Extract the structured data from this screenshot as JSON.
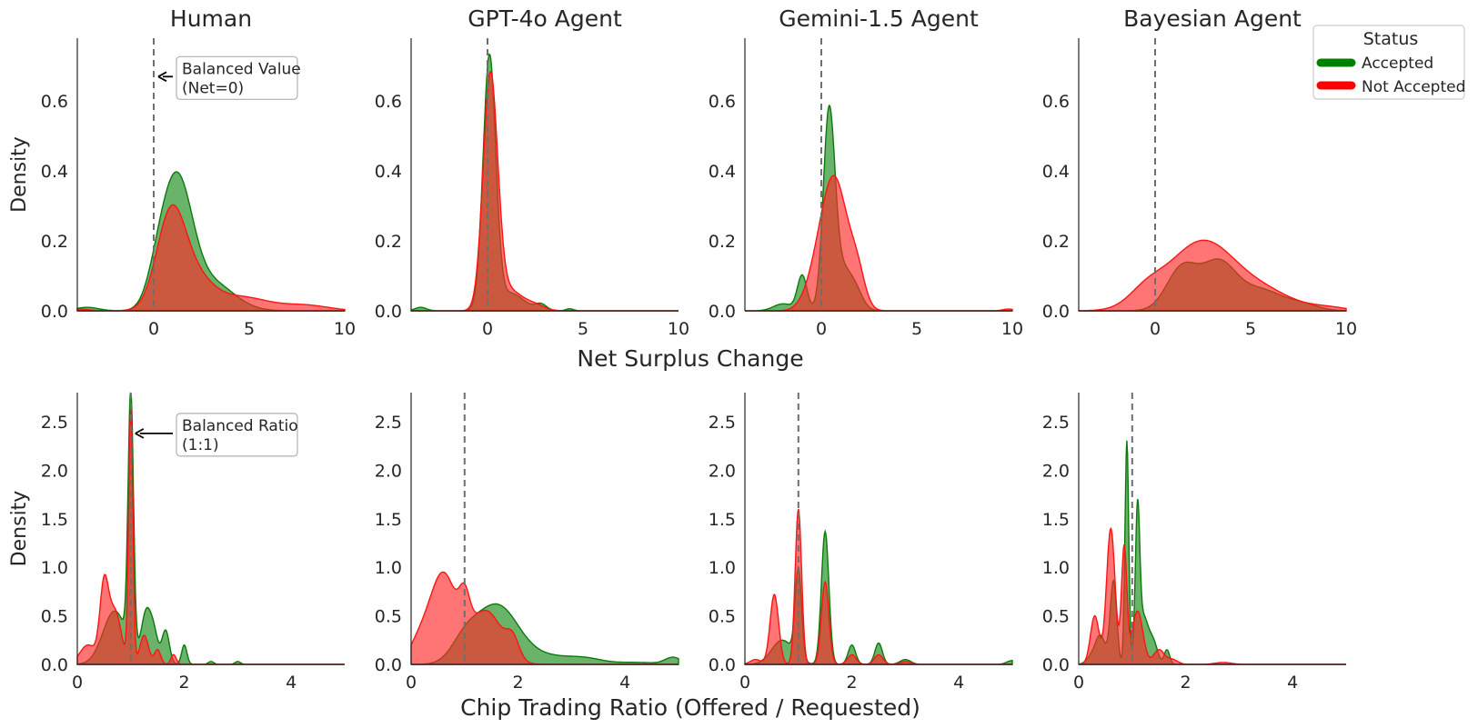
{
  "figure": {
    "row1_xlabel": "Net Surplus Change",
    "row2_xlabel": "Chip Trading Ratio (Offered / Requested)",
    "ylabel": "Density"
  },
  "legend": {
    "title": "Status",
    "entries": [
      {
        "label": "Accepted",
        "color": "#008000"
      },
      {
        "label": "Not Accepted",
        "color": "#ff0000"
      }
    ]
  },
  "annotations": {
    "surplus": {
      "line1": "Balanced Value",
      "line2": "(Net=0)",
      "x": 0,
      "y": 0.67
    },
    "ratio": {
      "line1": "Balanced Ratio",
      "line2": "(1:1)",
      "x": 1.0,
      "y": 2.38
    }
  },
  "chart_data": [
    {
      "type": "area",
      "row": 0,
      "col": 0,
      "title": "Human",
      "xlabel": "",
      "ylabel": "Density",
      "xlim": [
        -4,
        10
      ],
      "ylim": [
        0,
        0.78
      ],
      "xticks": [
        0,
        5,
        10
      ],
      "yticks": [
        0.0,
        0.2,
        0.4,
        0.6
      ],
      "reference_x": 0,
      "series": [
        {
          "name": "Accepted",
          "components": [
            [
              0.2,
              0.55,
              0.06
            ],
            [
              1.2,
              0.8,
              0.36
            ],
            [
              3,
              1.2,
              0.08
            ],
            [
              -3.5,
              0.6,
              0.01
            ]
          ]
        },
        {
          "name": "Not Accepted",
          "components": [
            [
              0.9,
              0.75,
              0.27
            ],
            [
              2.2,
              0.9,
              0.08
            ],
            [
              4.5,
              1.5,
              0.04
            ],
            [
              8,
              1.2,
              0.015
            ],
            [
              -3.8,
              0.4,
              0.005
            ]
          ]
        }
      ]
    },
    {
      "type": "area",
      "row": 0,
      "col": 1,
      "title": "GPT-4o Agent",
      "xlabel": "",
      "ylabel": "",
      "xlim": [
        -4,
        10
      ],
      "ylim": [
        0,
        0.78
      ],
      "xticks": [
        0,
        5,
        10
      ],
      "yticks": [
        0.0,
        0.2,
        0.4,
        0.6
      ],
      "reference_x": 0,
      "series": [
        {
          "name": "Accepted",
          "components": [
            [
              0.1,
              0.33,
              0.72
            ],
            [
              1.2,
              0.7,
              0.05
            ],
            [
              2.8,
              0.3,
              0.018
            ],
            [
              -3.5,
              0.3,
              0.01
            ],
            [
              4.3,
              0.2,
              0.006
            ]
          ]
        },
        {
          "name": "Not Accepted",
          "components": [
            [
              0.15,
              0.38,
              0.66
            ],
            [
              1.1,
              0.7,
              0.06
            ],
            [
              2.5,
              0.5,
              0.015
            ]
          ]
        }
      ]
    },
    {
      "type": "area",
      "row": 0,
      "col": 2,
      "title": "Gemini-1.5 Agent",
      "xlabel": "",
      "ylabel": "",
      "xlim": [
        -4,
        10
      ],
      "ylim": [
        0,
        0.78
      ],
      "xticks": [
        0,
        5,
        10
      ],
      "yticks": [
        0.0,
        0.2,
        0.4,
        0.6
      ],
      "reference_x": 0,
      "series": [
        {
          "name": "Accepted",
          "components": [
            [
              0.4,
              0.3,
              0.52
            ],
            [
              1.0,
              0.55,
              0.12
            ],
            [
              -1.0,
              0.25,
              0.1
            ],
            [
              -2.0,
              0.5,
              0.02
            ],
            [
              1.8,
              0.4,
              0.04
            ]
          ]
        },
        {
          "name": "Not Accepted",
          "components": [
            [
              0.7,
              0.7,
              0.37
            ],
            [
              -0.3,
              0.6,
              0.06
            ],
            [
              1.9,
              0.4,
              0.08
            ],
            [
              9.8,
              0.3,
              0.005
            ]
          ]
        }
      ]
    },
    {
      "type": "area",
      "row": 0,
      "col": 3,
      "title": "Bayesian Agent",
      "xlabel": "",
      "ylabel": "",
      "xlim": [
        -4,
        10
      ],
      "ylim": [
        0,
        0.78
      ],
      "xticks": [
        0,
        5,
        10
      ],
      "yticks": [
        0.0,
        0.2,
        0.4,
        0.6
      ],
      "reference_x": 0,
      "series": [
        {
          "name": "Accepted",
          "components": [
            [
              1.4,
              0.8,
              0.12
            ],
            [
              3.3,
              0.9,
              0.13
            ],
            [
              5.5,
              1.2,
              0.06
            ],
            [
              7.8,
              0.8,
              0.015
            ]
          ]
        },
        {
          "name": "Not Accepted",
          "components": [
            [
              2.5,
              1.8,
              0.2
            ],
            [
              6,
              1.4,
              0.04
            ],
            [
              -0.5,
              0.9,
              0.04
            ],
            [
              9,
              1,
              0.01
            ]
          ]
        }
      ]
    },
    {
      "type": "area",
      "row": 1,
      "col": 0,
      "title": "",
      "xlabel": "",
      "ylabel": "Density",
      "xlim": [
        0,
        5
      ],
      "ylim": [
        0,
        2.8
      ],
      "xticks": [
        0,
        2,
        4
      ],
      "yticks": [
        0.0,
        0.5,
        1.0,
        1.5,
        2.0,
        2.5
      ],
      "reference_x": 1.0,
      "series": [
        {
          "name": "Accepted",
          "components": [
            [
              1.0,
              0.05,
              2.62
            ],
            [
              0.7,
              0.22,
              0.55
            ],
            [
              1.3,
              0.1,
              0.55
            ],
            [
              1.65,
              0.07,
              0.35
            ],
            [
              2.0,
              0.05,
              0.2
            ],
            [
              2.5,
              0.05,
              0.03
            ],
            [
              3.0,
              0.05,
              0.03
            ],
            [
              1.45,
              0.07,
              0.2
            ]
          ]
        },
        {
          "name": "Not Accepted",
          "components": [
            [
              1.0,
              0.04,
              2.6
            ],
            [
              0.5,
              0.08,
              0.75
            ],
            [
              0.7,
              0.12,
              0.55
            ],
            [
              0.2,
              0.15,
              0.2
            ],
            [
              1.25,
              0.08,
              0.3
            ],
            [
              1.5,
              0.06,
              0.15
            ],
            [
              1.8,
              0.05,
              0.1
            ]
          ]
        }
      ]
    },
    {
      "type": "area",
      "row": 1,
      "col": 1,
      "title": "",
      "xlabel": "",
      "ylabel": "",
      "xlim": [
        0,
        5
      ],
      "ylim": [
        0,
        2.8
      ],
      "xticks": [
        0,
        2,
        4
      ],
      "yticks": [
        0.0,
        0.5,
        1.0,
        1.5,
        2.0,
        2.5
      ],
      "reference_x": 1.0,
      "series": [
        {
          "name": "Accepted",
          "components": [
            [
              1.6,
              0.4,
              0.6
            ],
            [
              1.0,
              0.25,
              0.2
            ],
            [
              2.6,
              0.5,
              0.08
            ],
            [
              3.3,
              0.3,
              0.04
            ],
            [
              4.9,
              0.15,
              0.07
            ],
            [
              4.2,
              0.4,
              0.02
            ]
          ]
        },
        {
          "name": "Not Accepted",
          "components": [
            [
              0.6,
              0.25,
              0.92
            ],
            [
              1.0,
              0.1,
              0.35
            ],
            [
              1.4,
              0.3,
              0.55
            ],
            [
              1.9,
              0.12,
              0.2
            ],
            [
              0.15,
              0.2,
              0.2
            ]
          ]
        }
      ]
    },
    {
      "type": "area",
      "row": 1,
      "col": 2,
      "title": "",
      "xlabel": "",
      "ylabel": "",
      "xlim": [
        0,
        5
      ],
      "ylim": [
        0,
        2.8
      ],
      "xticks": [
        0,
        2,
        4
      ],
      "yticks": [
        0.0,
        0.5,
        1.0,
        1.5,
        2.0,
        2.5
      ],
      "reference_x": 1.0,
      "series": [
        {
          "name": "Accepted",
          "components": [
            [
              1.5,
              0.07,
              1.37
            ],
            [
              1.0,
              0.06,
              0.92
            ],
            [
              0.7,
              0.2,
              0.25
            ],
            [
              2.0,
              0.07,
              0.2
            ],
            [
              2.5,
              0.07,
              0.22
            ],
            [
              3.0,
              0.1,
              0.05
            ],
            [
              5.0,
              0.1,
              0.04
            ]
          ]
        },
        {
          "name": "Not Accepted",
          "components": [
            [
              1.0,
              0.06,
              1.6
            ],
            [
              0.55,
              0.08,
              0.72
            ],
            [
              1.5,
              0.07,
              0.85
            ],
            [
              0.2,
              0.1,
              0.05
            ],
            [
              2.0,
              0.08,
              0.1
            ],
            [
              2.5,
              0.08,
              0.1
            ],
            [
              3,
              0.1,
              0.03
            ]
          ]
        }
      ]
    },
    {
      "type": "area",
      "row": 1,
      "col": 3,
      "title": "",
      "xlabel": "",
      "ylabel": "",
      "xlim": [
        0,
        5
      ],
      "ylim": [
        0,
        2.8
      ],
      "xticks": [
        0,
        2,
        4
      ],
      "yticks": [
        0.0,
        0.5,
        1.0,
        1.5,
        2.0,
        2.5
      ],
      "reference_x": 1.0,
      "series": [
        {
          "name": "Accepted",
          "components": [
            [
              0.9,
              0.035,
              2.3
            ],
            [
              1.1,
              0.04,
              1.4
            ],
            [
              0.65,
              0.06,
              0.85
            ],
            [
              1.2,
              0.1,
              0.5
            ],
            [
              0.4,
              0.1,
              0.3
            ],
            [
              1.65,
              0.05,
              0.15
            ],
            [
              1.4,
              0.08,
              0.2
            ],
            [
              0.2,
              0.08,
              0.05
            ]
          ]
        },
        {
          "name": "Not Accepted",
          "components": [
            [
              0.6,
              0.08,
              1.4
            ],
            [
              0.85,
              0.05,
              1.2
            ],
            [
              0.3,
              0.08,
              0.5
            ],
            [
              1.1,
              0.1,
              0.55
            ],
            [
              1.5,
              0.1,
              0.15
            ],
            [
              1.75,
              0.1,
              0.05
            ],
            [
              2.7,
              0.15,
              0.02
            ]
          ]
        }
      ]
    }
  ]
}
